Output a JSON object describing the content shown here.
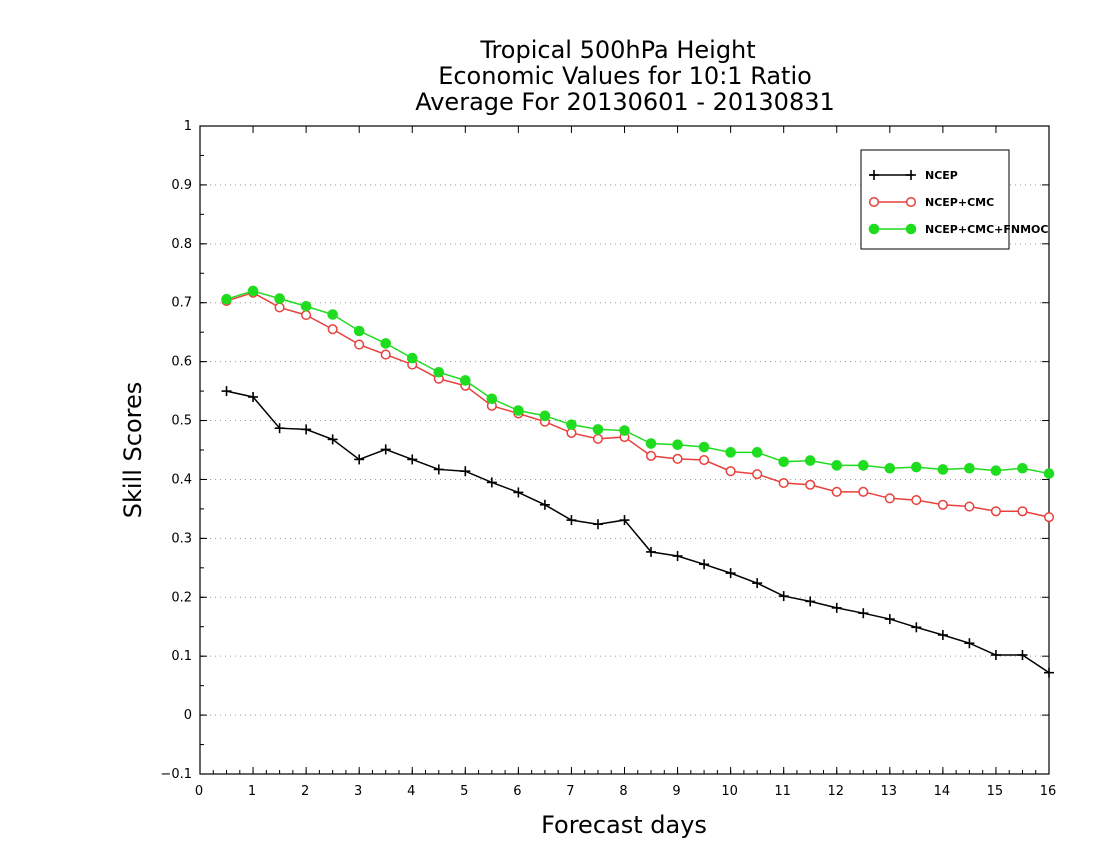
{
  "chart_data": {
    "type": "line",
    "title_lines": [
      "Tropical 500hPa Height",
      "Economic Values for 10:1 Ratio",
      "Average For 20130601 - 20130831"
    ],
    "xlabel": "Forecast days",
    "ylabel": "Skill Scores",
    "xlim": [
      0,
      16
    ],
    "ylim": [
      -0.1,
      1
    ],
    "x_ticks": [
      0,
      1,
      2,
      3,
      4,
      5,
      6,
      7,
      8,
      9,
      10,
      11,
      12,
      13,
      14,
      15,
      16
    ],
    "y_ticks": [
      -0.1,
      0,
      0.1,
      0.2,
      0.3,
      0.4,
      0.5,
      0.6,
      0.7,
      0.8,
      0.9,
      1
    ],
    "y_tick_labels": [
      "−0.1",
      "0",
      "0.1",
      "0.2",
      "0.3",
      "0.4",
      "0.5",
      "0.6",
      "0.7",
      "0.8",
      "0.9",
      "1"
    ],
    "grid": "horizontal-dotted",
    "legend_position": "top-right",
    "x": [
      0.5,
      1,
      1.5,
      2,
      2.5,
      3,
      3.5,
      4,
      4.5,
      5,
      5.5,
      6,
      6.5,
      7,
      7.5,
      8,
      8.5,
      9,
      9.5,
      10,
      10.5,
      11,
      11.5,
      12,
      12.5,
      13,
      13.5,
      14,
      14.5,
      15,
      15.5,
      16
    ],
    "series": [
      {
        "name": "NCEP",
        "color": "#000000",
        "marker": "plus",
        "values": [
          0.55,
          0.54,
          0.487,
          0.485,
          0.468,
          0.434,
          0.451,
          0.434,
          0.417,
          0.414,
          0.395,
          0.378,
          0.357,
          0.331,
          0.324,
          0.331,
          0.277,
          0.27,
          0.256,
          0.241,
          0.224,
          0.202,
          0.193,
          0.182,
          0.173,
          0.163,
          0.149,
          0.136,
          0.122,
          0.102,
          0.102,
          0.072
        ]
      },
      {
        "name": "NCEP+CMC",
        "color": "#e8403c",
        "marker": "open-circle",
        "values": [
          0.703,
          0.717,
          0.692,
          0.679,
          0.655,
          0.629,
          0.612,
          0.595,
          0.571,
          0.559,
          0.525,
          0.512,
          0.498,
          0.479,
          0.469,
          0.472,
          0.44,
          0.435,
          0.433,
          0.414,
          0.409,
          0.394,
          0.391,
          0.379,
          0.379,
          0.368,
          0.365,
          0.357,
          0.354,
          0.346,
          0.346,
          0.336
        ]
      },
      {
        "name": "NCEP+CMC+FNMOC",
        "color": "#1fdc1f",
        "marker": "filled-circle",
        "values": [
          0.706,
          0.72,
          0.707,
          0.694,
          0.68,
          0.652,
          0.631,
          0.606,
          0.582,
          0.568,
          0.537,
          0.517,
          0.508,
          0.493,
          0.485,
          0.483,
          0.461,
          0.459,
          0.455,
          0.446,
          0.446,
          0.43,
          0.432,
          0.424,
          0.424,
          0.419,
          0.421,
          0.417,
          0.419,
          0.415,
          0.419,
          0.41
        ]
      }
    ]
  }
}
